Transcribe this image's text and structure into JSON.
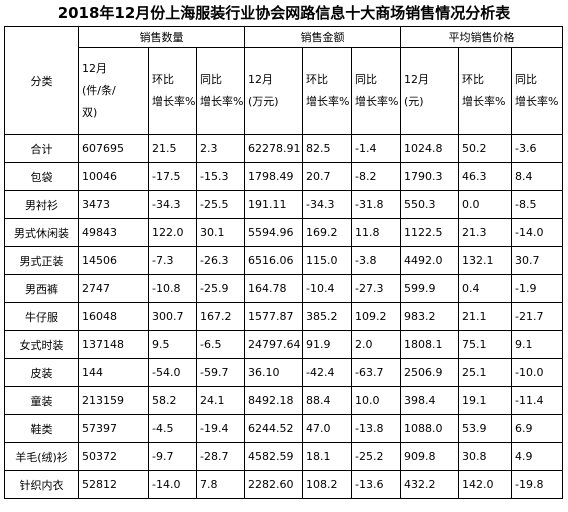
{
  "title": "2018年12月份上海服装行业协会网路信息十大商场销售情况分析表",
  "table": {
    "category_header": "分类",
    "groups": [
      "销售数量",
      "销售金额",
      "平均销售价格"
    ],
    "subheaders": [
      [
        [
          "12月",
          "(件/条/",
          "双)"
        ],
        [
          "环比",
          "增长率%"
        ],
        [
          "同比",
          "增长率%"
        ]
      ],
      [
        [
          "12月",
          "(万元)"
        ],
        [
          "环比",
          "增长率%"
        ],
        [
          "同比",
          "增长率%"
        ]
      ],
      [
        [
          "12月",
          "(元)"
        ],
        [
          "环比",
          "增长率%"
        ],
        [
          "同比",
          "增长率%"
        ]
      ]
    ],
    "rows": [
      [
        "合计",
        "607695",
        "21.5",
        "2.3",
        "62278.91",
        "82.5",
        "-1.4",
        "1024.8",
        "50.2",
        "-3.6"
      ],
      [
        "包袋",
        "10046",
        "-17.5",
        "-15.3",
        "1798.49",
        "20.7",
        "-8.2",
        "1790.3",
        "46.3",
        "8.4"
      ],
      [
        "男衬衫",
        "3473",
        "-34.3",
        "-25.5",
        "191.11",
        "-34.3",
        "-31.8",
        "550.3",
        "0.0",
        "-8.5"
      ],
      [
        "男式休闲装",
        "49843",
        "122.0",
        "30.1",
        "5594.96",
        "169.2",
        "11.8",
        "1122.5",
        "21.3",
        "-14.0"
      ],
      [
        "男式正装",
        "14506",
        "-7.3",
        "-26.3",
        "6516.06",
        "115.0",
        "-3.8",
        "4492.0",
        "132.1",
        "30.7"
      ],
      [
        "男西裤",
        "2747",
        "-10.8",
        "-25.9",
        "164.78",
        "-10.4",
        "-27.3",
        "599.9",
        "0.4",
        "-1.9"
      ],
      [
        "牛仔服",
        "16048",
        "300.7",
        "167.2",
        "1577.87",
        "385.2",
        "109.2",
        "983.2",
        "21.1",
        "-21.7"
      ],
      [
        "女式时装",
        "137148",
        "9.5",
        "-6.5",
        "24797.64",
        "91.9",
        "2.0",
        "1808.1",
        "75.1",
        "9.1"
      ],
      [
        "皮装",
        "144",
        "-54.0",
        "-59.7",
        "36.10",
        "-42.4",
        "-63.7",
        "2506.9",
        "25.1",
        "-10.0"
      ],
      [
        "童装",
        "213159",
        "58.2",
        "24.1",
        "8492.18",
        "88.4",
        "10.0",
        "398.4",
        "19.1",
        "-11.4"
      ],
      [
        "鞋类",
        "57397",
        "-4.5",
        "-19.4",
        "6244.52",
        "47.0",
        "-13.8",
        "1088.0",
        "53.9",
        "6.9"
      ],
      [
        "羊毛(绒)衫",
        "50372",
        "-9.7",
        "-28.7",
        "4582.59",
        "18.1",
        "-25.2",
        "909.8",
        "30.8",
        "4.9"
      ],
      [
        "针织内衣",
        "52812",
        "-14.0",
        "7.8",
        "2282.60",
        "108.2",
        "-13.6",
        "432.2",
        "142.0",
        "-19.8"
      ]
    ]
  }
}
